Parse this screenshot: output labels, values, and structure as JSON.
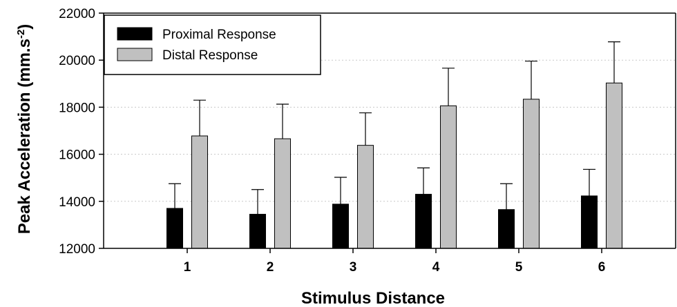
{
  "chart_data": {
    "type": "bar",
    "xlabel": "Stimulus Distance",
    "ylabel_prefix": "Peak Acceleration (mm.s",
    "ylabel_sup": "-2",
    "ylabel_suffix": ")",
    "ylim": [
      12000,
      22000
    ],
    "yticks": [
      "12000",
      "14000",
      "16000",
      "18000",
      "20000",
      "22000"
    ],
    "ytick_values": [
      12000,
      14000,
      16000,
      18000,
      20000,
      22000
    ],
    "categories": [
      "1",
      "2",
      "3",
      "4",
      "5",
      "6"
    ],
    "grid": "dotted horizontal",
    "legend_position": "top-left",
    "series": [
      {
        "name": "Proximal Response",
        "color": "#000000",
        "values": [
          13700,
          13450,
          13880,
          14300,
          13650,
          14230
        ],
        "error_upper": [
          14750,
          14500,
          15020,
          15420,
          14750,
          15360
        ]
      },
      {
        "name": "Distal Response",
        "color": "#c0c0c0",
        "values": [
          16780,
          16660,
          16380,
          18060,
          18340,
          19030
        ],
        "error_upper": [
          18300,
          18130,
          17760,
          19660,
          19960,
          20780
        ]
      }
    ]
  }
}
